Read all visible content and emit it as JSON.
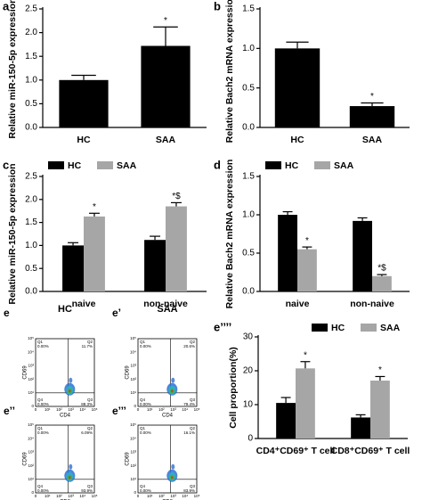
{
  "chart_data": [
    {
      "panel": "a",
      "type": "bar",
      "y_label": "Relative miR-150-5p expression",
      "categories": [
        "HC",
        "SAA"
      ],
      "values": [
        1.0,
        1.72
      ],
      "errors": [
        0.1,
        0.4
      ],
      "value_annotations": [
        null,
        "*"
      ],
      "color": "#000000",
      "ylim": [
        0,
        2.5
      ],
      "yticks": [
        {
          "value": 0,
          "label": "0.0"
        },
        0.5,
        {
          "value": 1,
          "label": "1.0"
        },
        1.5,
        {
          "value": 2,
          "label": "2.0"
        },
        2.5
      ]
    },
    {
      "panel": "b",
      "type": "bar",
      "y_label": "Relative Bach2 mRNA expression",
      "categories": [
        "HC",
        "SAA"
      ],
      "values": [
        1.0,
        0.27
      ],
      "errors": [
        0.08,
        0.04
      ],
      "value_annotations": [
        null,
        "*"
      ],
      "color": "#000000",
      "ylim": [
        0,
        1.5
      ],
      "yticks": [
        {
          "value": 0,
          "label": "0.0"
        },
        0.5,
        {
          "value": 1,
          "label": "1.0"
        },
        1.5
      ]
    },
    {
      "panel": "c",
      "type": "bar",
      "y_label": "Relative miR-150-5p expression",
      "categories": [
        "naive",
        "non-naive"
      ],
      "legend": "top-left",
      "ylim": [
        0,
        2.5
      ],
      "yticks": [
        {
          "value": 0,
          "label": "0.0"
        },
        0.5,
        {
          "value": 1,
          "label": "1.0"
        },
        1.5,
        {
          "value": 2,
          "label": "2.0"
        },
        2.5
      ],
      "series": [
        {
          "name": "HC",
          "color": "#000000",
          "values": [
            1.0,
            1.12
          ],
          "errors": [
            0.06,
            0.08
          ],
          "annotations": [
            null,
            null
          ]
        },
        {
          "name": "SAA",
          "color": "#a6a6a6",
          "values": [
            1.63,
            1.85
          ],
          "errors": [
            0.07,
            0.08
          ],
          "annotations": [
            "*",
            "*$"
          ]
        }
      ]
    },
    {
      "panel": "d",
      "type": "bar",
      "y_label": "Relative Bach2 mRNA expression",
      "categories": [
        "naive",
        "non-naive"
      ],
      "legend": "top-left",
      "ylim": [
        0,
        1.5
      ],
      "yticks": [
        {
          "value": 0,
          "label": "0.0"
        },
        0.5,
        {
          "value": 1,
          "label": "1.0"
        },
        1.5
      ],
      "series": [
        {
          "name": "HC",
          "color": "#000000",
          "values": [
            1.0,
            0.92
          ],
          "errors": [
            0.04,
            0.04
          ],
          "annotations": [
            null,
            null
          ]
        },
        {
          "name": "SAA",
          "color": "#a6a6a6",
          "values": [
            0.55,
            0.2
          ],
          "errors": [
            0.03,
            0.02
          ],
          "annotations": [
            "*",
            "*$"
          ]
        }
      ]
    },
    {
      "panel": "e’’’’",
      "type": "bar",
      "y_label": "Cell proportion(%)",
      "categories": [
        "CD4⁺CD69⁺ T cell",
        "CD8⁺CD69⁺ T cell"
      ],
      "legend": "top-right",
      "ylim": [
        0,
        30
      ],
      "yticks": [
        0,
        10,
        20,
        30
      ],
      "series": [
        {
          "name": "HC",
          "color": "#000000",
          "values": [
            10.5,
            6.2
          ],
          "errors": [
            1.6,
            0.8
          ],
          "annotations": [
            null,
            null
          ]
        },
        {
          "name": "SAA",
          "color": "#a6a6a6",
          "values": [
            20.7,
            17.1
          ],
          "errors": [
            2.0,
            1.2
          ],
          "annotations": [
            "*",
            "*"
          ]
        }
      ]
    }
  ],
  "flow_axis_ticks": [
    "0",
    "10¹",
    "10²",
    "10³",
    "10⁴",
    "10⁵"
  ],
  "flow_panels": [
    {
      "panel": "e",
      "title": "HC",
      "x_label": "CD4",
      "y_label": "CD69",
      "quadrants": [
        {
          "name": "Q1",
          "value": "0.00%"
        },
        {
          "name": "Q2",
          "value": "11.7%"
        },
        {
          "name": "Q4",
          "value": "0.00%"
        },
        {
          "name": "Q3",
          "value": "88.3%"
        }
      ]
    },
    {
      "panel": "e’",
      "title": "SAA",
      "x_label": "CD4",
      "y_label": "CD69",
      "quadrants": [
        {
          "name": "Q1",
          "value": "0.00%"
        },
        {
          "name": "Q2",
          "value": "20.6%"
        },
        {
          "name": "Q4",
          "value": "0.00%"
        },
        {
          "name": "Q3",
          "value": "79.4%"
        }
      ]
    },
    {
      "panel": "e’’",
      "x_label": "CD8",
      "y_label": "CD69",
      "quadrants": [
        {
          "name": "Q1",
          "value": "0.00%"
        },
        {
          "name": "Q2",
          "value": "6.09%"
        },
        {
          "name": "Q4",
          "value": "0.00%"
        },
        {
          "name": "Q3",
          "value": "93.9%"
        }
      ]
    },
    {
      "panel": "e’’’",
      "x_label": "CD8",
      "y_label": "CD69",
      "quadrants": [
        {
          "name": "Q1",
          "value": "0.00%"
        },
        {
          "name": "Q2",
          "value": "16.1%"
        },
        {
          "name": "Q4",
          "value": "0.00%"
        },
        {
          "name": "Q3",
          "value": "83.9%"
        }
      ]
    }
  ]
}
